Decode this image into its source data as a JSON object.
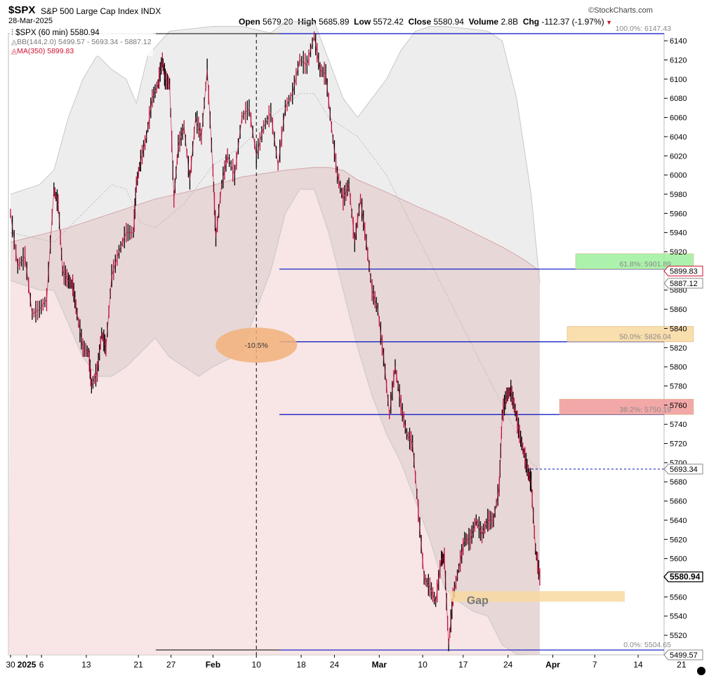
{
  "header": {
    "symbol": "$SPX",
    "name": "S&P 500 Large Cap Index",
    "exchange": "INDX",
    "date": "28-Mar-2025",
    "open_label": "Open",
    "open": "5679.20",
    "high_label": "High",
    "high": "5685.89",
    "low_label": "Low",
    "low": "5572.42",
    "close_label": "Close",
    "close": "5580.94",
    "volume_label": "Volume",
    "volume": "2.8B",
    "chg_label": "Chg",
    "chg": "-112.37 (-1.97%)",
    "brand": "©StockCharts.com"
  },
  "legend": {
    "price": "$SPX (60 min) 5580.94",
    "bb": "BB(144,2.0) 5499.57 - 5693.34 - 5887.12",
    "ma": "MA(350) 5899.83"
  },
  "colors": {
    "candle": "#c0103a",
    "bb_fill": "#ececec",
    "ma_fill": "#f6dcdc",
    "fib_line": "#0010c0",
    "green": "#9ef09e",
    "orange": "#f8d9a0",
    "red": "#f29a9a"
  },
  "chart_data": {
    "type": "line",
    "title": "$SPX (60 min)",
    "interval": "60 min",
    "y_ticks": [
      5520,
      5540,
      5560,
      5580,
      5600,
      5620,
      5640,
      5660,
      5680,
      5700,
      5720,
      5740,
      5760,
      5780,
      5800,
      5820,
      5840,
      5860,
      5880,
      5900,
      5920,
      5940,
      5960,
      5980,
      6000,
      6020,
      6040,
      6060,
      6080,
      6100,
      6120,
      6140
    ],
    "y_tick_labels": [
      "5520",
      "5540",
      "5560",
      "",
      "5600",
      "5620",
      "5640",
      "5660",
      "5680",
      "5700",
      "5720",
      "5740",
      "5760",
      "5780",
      "5800",
      "5820",
      "5840",
      "5860",
      "5880",
      "",
      "5920",
      "5940",
      "5960",
      "5980",
      "6000",
      "6020",
      "6040",
      "6060",
      "6080",
      "6100",
      "6120",
      "6140"
    ],
    "ylim": [
      5499.57,
      6147.43
    ],
    "x_ticks": [
      {
        "label": "30",
        "pos": 0.0,
        "bold": false
      },
      {
        "label": "2025",
        "pos": 1.12,
        "bold": true
      },
      {
        "label": "6",
        "pos": 2.14,
        "bold": false
      },
      {
        "label": "13",
        "pos": 5.24,
        "bold": false
      },
      {
        "label": "21",
        "pos": 8.84,
        "bold": false
      },
      {
        "label": "27",
        "pos": 11.1,
        "bold": false
      },
      {
        "label": "Feb",
        "pos": 14.0,
        "bold": true
      },
      {
        "label": "10",
        "pos": 17.0,
        "bold": false
      },
      {
        "label": "18",
        "pos": 20.1,
        "bold": false
      },
      {
        "label": "24",
        "pos": 22.4,
        "bold": false
      },
      {
        "label": "Mar",
        "pos": 25.5,
        "bold": true
      },
      {
        "label": "10",
        "pos": 28.5,
        "bold": false
      },
      {
        "label": "17",
        "pos": 31.3,
        "bold": false
      },
      {
        "label": "24",
        "pos": 34.4,
        "bold": false
      },
      {
        "label": "Apr",
        "pos": 37.5,
        "bold": true
      },
      {
        "label": "7",
        "pos": 40.4,
        "bold": false
      },
      {
        "label": "14",
        "pos": 43.4,
        "bold": false
      },
      {
        "label": "21",
        "pos": 46.4,
        "bold": false
      }
    ],
    "price_path": [
      [
        0,
        5960
      ],
      [
        0.5,
        5905
      ],
      [
        1,
        5915
      ],
      [
        1.5,
        5855
      ],
      [
        2,
        5860
      ],
      [
        2.5,
        5870
      ],
      [
        3,
        5985
      ],
      [
        3.3,
        5970
      ],
      [
        3.6,
        5900
      ],
      [
        4,
        5890
      ],
      [
        4.3,
        5885
      ],
      [
        4.6,
        5855
      ],
      [
        5,
        5820
      ],
      [
        5.4,
        5815
      ],
      [
        5.6,
        5780
      ],
      [
        6,
        5795
      ],
      [
        6.3,
        5835
      ],
      [
        6.6,
        5820
      ],
      [
        7,
        5895
      ],
      [
        7.5,
        5920
      ],
      [
        8,
        5940
      ],
      [
        8.5,
        5940
      ],
      [
        8.7,
        5990
      ],
      [
        9,
        6015
      ],
      [
        9.4,
        6040
      ],
      [
        9.8,
        6080
      ],
      [
        10.2,
        6095
      ],
      [
        10.5,
        6120
      ],
      [
        10.7,
        6100
      ],
      [
        11,
        6095
      ],
      [
        11.3,
        5975
      ],
      [
        11.6,
        6030
      ],
      [
        12,
        6050
      ],
      [
        12.4,
        5995
      ],
      [
        12.8,
        6060
      ],
      [
        13.2,
        6040
      ],
      [
        13.6,
        6110
      ],
      [
        14,
        6005
      ],
      [
        14.2,
        5935
      ],
      [
        14.6,
        5990
      ],
      [
        15,
        6020
      ],
      [
        15.5,
        6000
      ],
      [
        16,
        6060
      ],
      [
        16.5,
        6070
      ],
      [
        17,
        6020
      ],
      [
        17.5,
        6050
      ],
      [
        18,
        6065
      ],
      [
        18.5,
        6010
      ],
      [
        19,
        6070
      ],
      [
        19.5,
        6085
      ],
      [
        20,
        6120
      ],
      [
        20.5,
        6115
      ],
      [
        21,
        6145
      ],
      [
        21.4,
        6110
      ],
      [
        21.8,
        6105
      ],
      [
        22.2,
        6050
      ],
      [
        22.6,
        6000
      ],
      [
        23,
        5975
      ],
      [
        23.4,
        5990
      ],
      [
        23.8,
        5930
      ],
      [
        24.2,
        5975
      ],
      [
        24.6,
        5930
      ],
      [
        25,
        5880
      ],
      [
        25.4,
        5860
      ],
      [
        25.8,
        5810
      ],
      [
        26.2,
        5750
      ],
      [
        26.6,
        5800
      ],
      [
        27,
        5760
      ],
      [
        27.4,
        5730
      ],
      [
        27.8,
        5720
      ],
      [
        28.2,
        5650
      ],
      [
        28.6,
        5580
      ],
      [
        29,
        5570
      ],
      [
        29.4,
        5555
      ],
      [
        29.8,
        5600
      ],
      [
        30,
        5600
      ],
      [
        30.3,
        5510
      ],
      [
        30.6,
        5560
      ],
      [
        31,
        5590
      ],
      [
        31.4,
        5620
      ],
      [
        31.8,
        5620
      ],
      [
        32.2,
        5640
      ],
      [
        32.6,
        5625
      ],
      [
        33,
        5640
      ],
      [
        33.4,
        5640
      ],
      [
        33.8,
        5675
      ],
      [
        34,
        5750
      ],
      [
        34.3,
        5770
      ],
      [
        34.6,
        5775
      ],
      [
        34.9,
        5755
      ],
      [
        35.2,
        5730
      ],
      [
        35.5,
        5710
      ],
      [
        35.8,
        5690
      ],
      [
        36,
        5680
      ],
      [
        36.3,
        5610
      ],
      [
        36.6,
        5580.94
      ]
    ],
    "bb_upper": [
      [
        0,
        5980
      ],
      [
        2,
        5990
      ],
      [
        3,
        6005
      ],
      [
        4,
        6060
      ],
      [
        5,
        6100
      ],
      [
        6,
        6125
      ],
      [
        7,
        6110
      ],
      [
        8,
        6100
      ],
      [
        8.7,
        6075
      ],
      [
        9.5,
        6125
      ],
      [
        11,
        6150
      ],
      [
        14,
        6155
      ],
      [
        16,
        6155
      ],
      [
        18,
        6148
      ],
      [
        19,
        6160
      ],
      [
        21,
        6160
      ],
      [
        22,
        6120
      ],
      [
        23,
        6080
      ],
      [
        24,
        6060
      ],
      [
        25,
        6080
      ],
      [
        26,
        6100
      ],
      [
        27,
        6130
      ],
      [
        28,
        6150
      ],
      [
        29,
        6155
      ],
      [
        30,
        6155
      ],
      [
        32,
        6152
      ],
      [
        33,
        6150
      ],
      [
        34,
        6140
      ],
      [
        35,
        6080
      ],
      [
        36,
        5980
      ],
      [
        36.6,
        5887.12
      ]
    ],
    "bb_middle": [
      [
        0,
        5940
      ],
      [
        3,
        5930
      ],
      [
        5,
        5960
      ],
      [
        7,
        5990
      ],
      [
        8,
        5985
      ],
      [
        9,
        5950
      ],
      [
        10,
        5945
      ],
      [
        12,
        5970
      ],
      [
        14,
        6010
      ],
      [
        16,
        6030
      ],
      [
        18,
        6060
      ],
      [
        20,
        6085
      ],
      [
        21,
        6085
      ],
      [
        22,
        6060
      ],
      [
        24,
        6040
      ],
      [
        26,
        6000
      ],
      [
        28,
        5940
      ],
      [
        30,
        5880
      ],
      [
        32,
        5820
      ],
      [
        34,
        5760
      ],
      [
        35,
        5730
      ],
      [
        36,
        5700
      ],
      [
        36.6,
        5693.34
      ]
    ],
    "bb_lower": [
      [
        0,
        5890
      ],
      [
        2,
        5880
      ],
      [
        3,
        5880
      ],
      [
        4,
        5845
      ],
      [
        5,
        5810
      ],
      [
        6,
        5790
      ],
      [
        7,
        5790
      ],
      [
        8,
        5800
      ],
      [
        9,
        5815
      ],
      [
        10,
        5830
      ],
      [
        11,
        5810
      ],
      [
        13,
        5790
      ],
      [
        14,
        5800
      ],
      [
        16,
        5815
      ],
      [
        17,
        5860
      ],
      [
        18,
        5900
      ],
      [
        19,
        5960
      ],
      [
        20,
        5985
      ],
      [
        21,
        5985
      ],
      [
        22,
        5940
      ],
      [
        23,
        5880
      ],
      [
        24,
        5820
      ],
      [
        25,
        5770
      ],
      [
        26,
        5730
      ],
      [
        27,
        5700
      ],
      [
        28,
        5660
      ],
      [
        29,
        5620
      ],
      [
        30,
        5570
      ],
      [
        31,
        5555
      ],
      [
        32,
        5545
      ],
      [
        33,
        5540
      ],
      [
        34,
        5510
      ],
      [
        35,
        5500
      ],
      [
        36,
        5499.57
      ],
      [
        36.6,
        5499.57
      ]
    ],
    "ma350": [
      [
        0,
        5930
      ],
      [
        4,
        5945
      ],
      [
        7,
        5960
      ],
      [
        10,
        5975
      ],
      [
        13,
        5985
      ],
      [
        16,
        5998
      ],
      [
        19,
        6005
      ],
      [
        21,
        6008
      ],
      [
        22,
        6008
      ],
      [
        23,
        6005
      ],
      [
        24,
        5995
      ],
      [
        26,
        5982
      ],
      [
        28,
        5968
      ],
      [
        30,
        5955
      ],
      [
        32,
        5940
      ],
      [
        34,
        5925
      ],
      [
        35.5,
        5912
      ],
      [
        36.6,
        5899.83
      ]
    ],
    "fib_levels": [
      {
        "label": "100.0%: 6147.43",
        "value": 6147.43,
        "box": false
      },
      {
        "label": "61.8%: 5901.89",
        "value": 5901.89,
        "box": true,
        "color": "green"
      },
      {
        "label": "50.0%: 5826.04",
        "value": 5826.04,
        "box": true,
        "color": "orange"
      },
      {
        "label": "38.2%: 5750.19",
        "value": 5750.19,
        "box": true,
        "color": "red"
      },
      {
        "label": "0.0%: 5504.65",
        "value": 5504.65,
        "box": false
      }
    ],
    "price_tags": [
      {
        "label": "5899.83",
        "value": 5899.83,
        "style": "red"
      },
      {
        "label": "5887.12",
        "value": 5887.12,
        "style": "grey"
      },
      {
        "label": "5693.34",
        "value": 5693.34,
        "style": "grey"
      },
      {
        "label": "5580.94",
        "value": 5580.94,
        "style": "bold"
      },
      {
        "label": "5499.57",
        "value": 5499.57,
        "style": "grey"
      }
    ],
    "annotations": [
      {
        "text": "-10.5%",
        "x": 17.0,
        "y": 5827
      },
      {
        "text": "Gap",
        "x": 32.3,
        "y": 5557
      }
    ],
    "gap_zone": [
      5555,
      5566
    ],
    "vertical_marker_x": 17.0
  }
}
